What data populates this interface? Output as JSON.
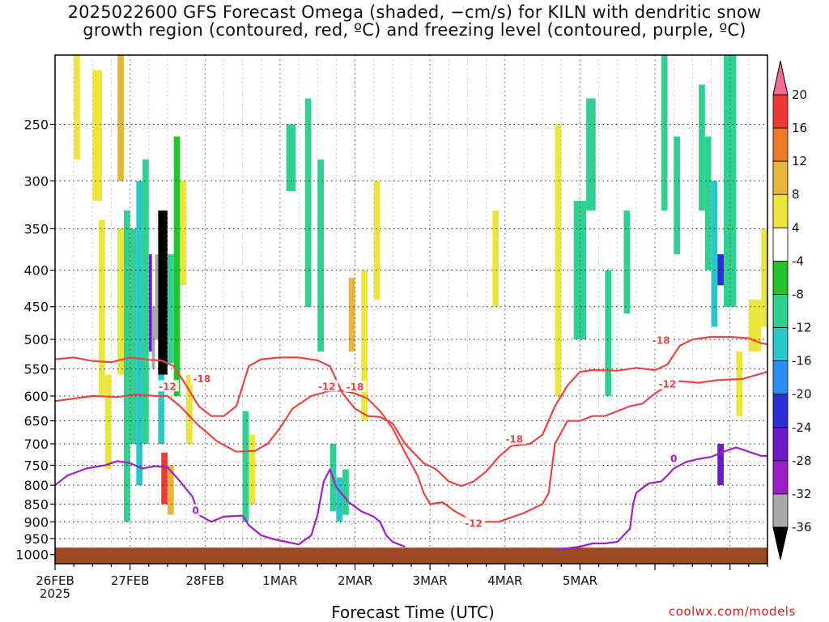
{
  "title": {
    "line1": "2025022600 GFS Forecast Omega (shaded, −cm/s) for KILN with dendritic snow",
    "line2": "growth region (contoured, red, ºC) and freezing level (contoured, purple, ºC)"
  },
  "credit": "coolwx.com/models",
  "chart_data": {
    "type": "heatmap",
    "xlabel": "Forecast Time (UTC)",
    "x_ticks": [
      "26FEB",
      "27FEB",
      "28FEB",
      "1MAR",
      "2MAR",
      "3MAR",
      "4MAR",
      "5MAR"
    ],
    "x_year": "2025",
    "x_range_hours": [
      0,
      228
    ],
    "y_scale": "log-pressure (hPa, inverted)",
    "y_ticks": [
      250,
      300,
      350,
      400,
      450,
      500,
      550,
      600,
      650,
      700,
      750,
      800,
      850,
      900,
      950,
      1000
    ],
    "y_range": [
      200,
      1030
    ],
    "grid": true,
    "colorbar": {
      "levels": [
        20,
        16,
        12,
        8,
        4,
        -4,
        -8,
        -12,
        -16,
        -20,
        -24,
        -28,
        -32,
        -36
      ],
      "colors": [
        "#f06c8c",
        "#ee3838",
        "#ee7b2b",
        "#e6b53a",
        "#ece63c",
        "#ffffff",
        "#24c32a",
        "#2ed190",
        "#28c8c8",
        "#2b8ff0",
        "#2c2cd9",
        "#6a1ac8",
        "#9a1ec8",
        "#a9a9a9",
        "#000000"
      ]
    },
    "contours": [
      {
        "kind": "dendritic",
        "color": "#e84545",
        "level": -18,
        "points": [
          [
            0,
            533
          ],
          [
            6,
            530
          ],
          [
            12,
            536
          ],
          [
            18,
            538
          ],
          [
            24,
            530
          ],
          [
            30,
            534
          ],
          [
            34,
            535
          ],
          [
            38,
            545
          ],
          [
            42,
            580
          ],
          [
            46,
            620
          ],
          [
            50,
            640
          ],
          [
            54,
            640
          ],
          [
            58,
            620
          ],
          [
            62,
            545
          ],
          [
            66,
            533
          ],
          [
            72,
            530
          ],
          [
            78,
            530
          ],
          [
            84,
            535
          ],
          [
            88,
            545
          ],
          [
            92,
            595
          ],
          [
            96,
            625
          ],
          [
            100,
            640
          ],
          [
            104,
            642
          ],
          [
            108,
            655
          ],
          [
            112,
            700
          ],
          [
            118,
            745
          ],
          [
            122,
            760
          ],
          [
            126,
            790
          ],
          [
            130,
            802
          ],
          [
            134,
            790
          ],
          [
            138,
            765
          ],
          [
            142,
            730
          ],
          [
            146,
            705
          ],
          [
            152,
            700
          ],
          [
            156,
            680
          ],
          [
            160,
            620
          ],
          [
            164,
            580
          ],
          [
            168,
            555
          ],
          [
            172,
            552
          ],
          [
            180,
            553
          ],
          [
            186,
            548
          ],
          [
            192,
            552
          ],
          [
            196,
            542
          ],
          [
            200,
            510
          ],
          [
            204,
            500
          ],
          [
            210,
            496
          ],
          [
            216,
            496
          ],
          [
            222,
            498
          ],
          [
            226,
            506
          ],
          [
            228,
            508
          ]
        ]
      },
      {
        "kind": "dendritic",
        "color": "#e84545",
        "level": -12,
        "points": [
          [
            0,
            610
          ],
          [
            6,
            605
          ],
          [
            12,
            600
          ],
          [
            20,
            602
          ],
          [
            26,
            597
          ],
          [
            32,
            600
          ],
          [
            36,
            600
          ],
          [
            40,
            620
          ],
          [
            46,
            660
          ],
          [
            52,
            695
          ],
          [
            58,
            718
          ],
          [
            64,
            716
          ],
          [
            68,
            700
          ],
          [
            72,
            665
          ],
          [
            76,
            625
          ],
          [
            82,
            600
          ],
          [
            88,
            590
          ],
          [
            92,
            590
          ],
          [
            96,
            595
          ],
          [
            100,
            605
          ],
          [
            104,
            630
          ],
          [
            108,
            665
          ],
          [
            112,
            720
          ],
          [
            116,
            775
          ],
          [
            118,
            820
          ],
          [
            120,
            850
          ],
          [
            124,
            845
          ],
          [
            128,
            870
          ],
          [
            134,
            900
          ],
          [
            142,
            900
          ],
          [
            150,
            875
          ],
          [
            156,
            850
          ],
          [
            158,
            820
          ],
          [
            160,
            700
          ],
          [
            164,
            650
          ],
          [
            168,
            650
          ],
          [
            172,
            640
          ],
          [
            176,
            640
          ],
          [
            180,
            630
          ],
          [
            184,
            620
          ],
          [
            188,
            615
          ],
          [
            192,
            595
          ],
          [
            196,
            580
          ],
          [
            200,
            572
          ],
          [
            206,
            575
          ],
          [
            212,
            570
          ],
          [
            220,
            568
          ],
          [
            228,
            555
          ]
        ]
      },
      {
        "kind": "freezing",
        "color": "#9f1fc8",
        "level": 0,
        "points": [
          [
            0,
            800
          ],
          [
            4,
            775
          ],
          [
            10,
            758
          ],
          [
            16,
            750
          ],
          [
            20,
            740
          ],
          [
            24,
            745
          ],
          [
            28,
            758
          ],
          [
            32,
            752
          ],
          [
            36,
            755
          ],
          [
            40,
            790
          ],
          [
            44,
            830
          ],
          [
            46,
            880
          ],
          [
            50,
            900
          ],
          [
            54,
            885
          ],
          [
            60,
            882
          ],
          [
            62,
            910
          ],
          [
            66,
            940
          ],
          [
            70,
            952
          ],
          [
            74,
            960
          ],
          [
            78,
            968
          ],
          [
            82,
            940
          ],
          [
            84,
            880
          ],
          [
            86,
            790
          ],
          [
            88,
            760
          ],
          [
            90,
            805
          ],
          [
            94,
            845
          ],
          [
            98,
            870
          ],
          [
            102,
            885
          ],
          [
            104,
            900
          ],
          [
            106,
            940
          ],
          [
            108,
            960
          ],
          [
            112,
            975
          ]
        ]
      },
      {
        "kind": "freezing",
        "color": "#9f1fc8",
        "level": 0,
        "points": [
          [
            160,
            985
          ],
          [
            168,
            975
          ],
          [
            172,
            965
          ],
          [
            176,
            965
          ],
          [
            180,
            960
          ],
          [
            184,
            920
          ],
          [
            185,
            850
          ],
          [
            186,
            820
          ],
          [
            190,
            795
          ],
          [
            194,
            790
          ],
          [
            196,
            775
          ],
          [
            198,
            758
          ],
          [
            202,
            742
          ],
          [
            206,
            735
          ],
          [
            210,
            730
          ],
          [
            214,
            718
          ],
          [
            218,
            708
          ],
          [
            222,
            718
          ],
          [
            226,
            728
          ],
          [
            228,
            728
          ]
        ]
      }
    ],
    "contour_labels": [
      {
        "text": "-18",
        "color": "#e84545",
        "t": 47,
        "p": 568
      },
      {
        "text": "-12",
        "color": "#e84545",
        "t": 36,
        "p": 582
      },
      {
        "text": "-12",
        "color": "#e84545",
        "t": 87,
        "p": 582
      },
      {
        "text": "-18",
        "color": "#e84545",
        "t": 96,
        "p": 583
      },
      {
        "text": "-18",
        "color": "#e84545",
        "t": 147,
        "p": 690
      },
      {
        "text": "-12",
        "color": "#e84545",
        "t": 134,
        "p": 905
      },
      {
        "text": "-18",
        "color": "#e84545",
        "t": 194,
        "p": 502
      },
      {
        "text": "-12",
        "color": "#e84545",
        "t": 196,
        "p": 578
      },
      {
        "text": "0",
        "color": "#9f1fc8",
        "t": 45,
        "p": 868
      },
      {
        "text": "0",
        "color": "#9f1fc8",
        "t": 198,
        "p": 735
      }
    ],
    "shading_cells": [
      {
        "t": [
          6,
          8
        ],
        "p": [
          200,
          280
        ],
        "v": 5
      },
      {
        "t": [
          12,
          15
        ],
        "p": [
          210,
          320
        ],
        "v": 6
      },
      {
        "t": [
          14,
          16
        ],
        "p": [
          340,
          600
        ],
        "v": 6
      },
      {
        "t": [
          16,
          18
        ],
        "p": [
          560,
          760
        ],
        "v": 6
      },
      {
        "t": [
          20,
          22
        ],
        "p": [
          200,
          300
        ],
        "v": 9
      },
      {
        "t": [
          20,
          22
        ],
        "p": [
          350,
          560
        ],
        "v": 7
      },
      {
        "t": [
          22,
          24
        ],
        "p": [
          330,
          900
        ],
        "v": -9
      },
      {
        "t": [
          24,
          26
        ],
        "p": [
          350,
          700
        ],
        "v": -10
      },
      {
        "t": [
          26,
          28
        ],
        "p": [
          300,
          800
        ],
        "v": -14
      },
      {
        "t": [
          28,
          30
        ],
        "p": [
          280,
          700
        ],
        "v": -12
      },
      {
        "t": [
          30,
          31
        ],
        "p": [
          380,
          520
        ],
        "v": -26
      },
      {
        "t": [
          31,
          32
        ],
        "p": [
          450,
          550
        ],
        "v": -34
      },
      {
        "t": [
          32,
          33
        ],
        "p": [
          380,
          500
        ],
        "v": -34
      },
      {
        "t": [
          33,
          36
        ],
        "p": [
          330,
          560
        ],
        "v": -40
      },
      {
        "t": [
          33,
          35
        ],
        "p": [
          560,
          700
        ],
        "v": -14
      },
      {
        "t": [
          36,
          38
        ],
        "p": [
          380,
          540
        ],
        "v": -10
      },
      {
        "t": [
          34,
          36
        ],
        "p": [
          720,
          850
        ],
        "v": 18
      },
      {
        "t": [
          36,
          38
        ],
        "p": [
          750,
          880
        ],
        "v": 10
      },
      {
        "t": [
          38,
          40
        ],
        "p": [
          260,
          600
        ],
        "v": -8
      },
      {
        "t": [
          40,
          42
        ],
        "p": [
          300,
          420
        ],
        "v": 6
      },
      {
        "t": [
          42,
          44
        ],
        "p": [
          560,
          700
        ],
        "v": 6
      },
      {
        "t": [
          60,
          62
        ],
        "p": [
          630,
          900
        ],
        "v": -9
      },
      {
        "t": [
          62,
          64
        ],
        "p": [
          680,
          850
        ],
        "v": 6
      },
      {
        "t": [
          74,
          77
        ],
        "p": [
          250,
          310
        ],
        "v": -9
      },
      {
        "t": [
          80,
          82
        ],
        "p": [
          230,
          450
        ],
        "v": -10
      },
      {
        "t": [
          84,
          86
        ],
        "p": [
          280,
          520
        ],
        "v": -9
      },
      {
        "t": [
          88,
          90
        ],
        "p": [
          700,
          870
        ],
        "v": -10
      },
      {
        "t": [
          90,
          92
        ],
        "p": [
          780,
          900
        ],
        "v": -13
      },
      {
        "t": [
          92,
          94
        ],
        "p": [
          760,
          880
        ],
        "v": -9
      },
      {
        "t": [
          94,
          96
        ],
        "p": [
          410,
          520
        ],
        "v": 8
      },
      {
        "t": [
          98,
          100
        ],
        "p": [
          400,
          650
        ],
        "v": 5
      },
      {
        "t": [
          102,
          104
        ],
        "p": [
          300,
          440
        ],
        "v": 5
      },
      {
        "t": [
          140,
          142
        ],
        "p": [
          330,
          450
        ],
        "v": 5
      },
      {
        "t": [
          160,
          162
        ],
        "p": [
          250,
          600
        ],
        "v": 5
      },
      {
        "t": [
          166,
          170
        ],
        "p": [
          320,
          500
        ],
        "v": -9
      },
      {
        "t": [
          170,
          173
        ],
        "p": [
          230,
          330
        ],
        "v": -9
      },
      {
        "t": [
          176,
          178
        ],
        "p": [
          400,
          600
        ],
        "v": -9
      },
      {
        "t": [
          182,
          184
        ],
        "p": [
          330,
          460
        ],
        "v": -9
      },
      {
        "t": [
          194,
          196
        ],
        "p": [
          200,
          330
        ],
        "v": -9
      },
      {
        "t": [
          198,
          200
        ],
        "p": [
          260,
          380
        ],
        "v": -9
      },
      {
        "t": [
          206,
          208
        ],
        "p": [
          220,
          330
        ],
        "v": -9
      },
      {
        "t": [
          208,
          210
        ],
        "p": [
          260,
          400
        ],
        "v": -12
      },
      {
        "t": [
          210,
          212
        ],
        "p": [
          300,
          480
        ],
        "v": -16
      },
      {
        "t": [
          212,
          214
        ],
        "p": [
          380,
          420
        ],
        "v": -22
      },
      {
        "t": [
          212,
          214
        ],
        "p": [
          700,
          800
        ],
        "v": -26
      },
      {
        "t": [
          214,
          218
        ],
        "p": [
          200,
          450
        ],
        "v": -9
      },
      {
        "t": [
          218,
          220
        ],
        "p": [
          520,
          640
        ],
        "v": 5
      },
      {
        "t": [
          222,
          226
        ],
        "p": [
          440,
          520
        ],
        "v": 5
      },
      {
        "t": [
          226,
          228
        ],
        "p": [
          350,
          480
        ],
        "v": 6
      }
    ]
  }
}
